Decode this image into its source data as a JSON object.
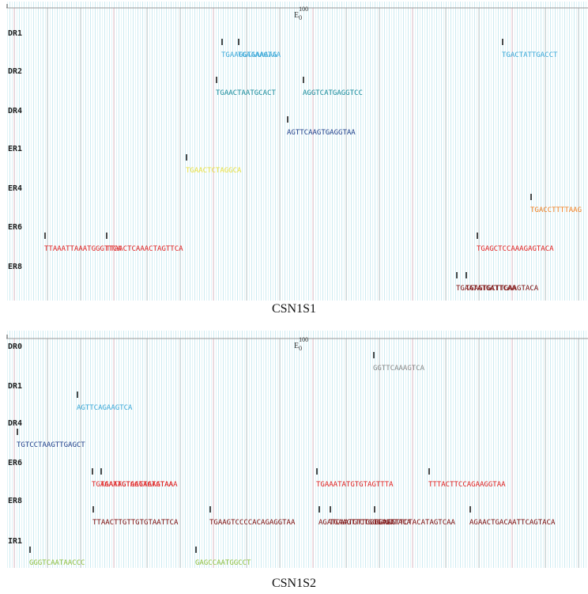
{
  "marker": {
    "base": "E",
    "sub": "0",
    "sup": "100"
  },
  "panels": [
    {
      "caption": "CSN1S1",
      "tracks": [
        {
          "name": "DR1",
          "color": "#3aa8d8",
          "sites": [
            "TGAAGGTGAAAAG",
            "TGAAAAGTAA",
            "TGACTATTGACCT"
          ]
        },
        {
          "name": "DR2",
          "color": "#168a9a",
          "sites": [
            "TGAACTAATGCACT",
            "AGGTCATGAGGTCC"
          ]
        },
        {
          "name": "DR4",
          "color": "#1f3f8a",
          "sites": [
            "AGTTCAAGTGAGGTAA"
          ]
        },
        {
          "name": "ER1",
          "color": "#e8e040",
          "sites": [
            "TGAACTCTAGGCA"
          ]
        },
        {
          "name": "ER4",
          "color": "#f07f20",
          "sites": [
            "TGACCTTTTAAG"
          ]
        },
        {
          "name": "ER6",
          "color": "#e02020",
          "sites": [
            "TTAAATTAAATGGGTTCA",
            "TTAACTCAAACTAGTTCA",
            "TGAGCTCCAAAGAGTACA"
          ]
        },
        {
          "name": "ER8",
          "color": "#7a0a0a",
          "sites": [
            "TGAATATGATTCAA",
            "TGAGTGCTTGAAGTACA"
          ]
        }
      ]
    },
    {
      "caption": "CSN1S2",
      "tracks": [
        {
          "name": "DR0",
          "color": "#888888",
          "sites": [
            "GGTTCAAAGTCA"
          ]
        },
        {
          "name": "DR1",
          "color": "#3aa8d8",
          "sites": [
            "AGTTCAGAAGTCA"
          ]
        },
        {
          "name": "DR4",
          "color": "#1f3f8a",
          "sites": [
            "TGTCCTAAGTTGAGCT"
          ]
        },
        {
          "name": "ER6",
          "color": "#e02020",
          "sites": [
            "TGAAAATGTAGTAGTATAA",
            "TGATAGTGAGTAAGTAAA",
            "TGAAATATGTGTAGTTTA",
            "TTTACTTCCAGAAGGTAA"
          ]
        },
        {
          "name": "ER8",
          "color": "#7a0a0a",
          "sites": [
            "TTAACTTGTTGTGTAATTCA",
            "TGAAGTCCCCACAGAGGTAA",
            "AGATCAATGTTGGGGAAG",
            "TGAAGTTCTGGGAGTTACA",
            "TGAGTTTCTACATAGTCAA",
            "AGAACTGACAATTCAGTACA"
          ]
        },
        {
          "name": "IR1",
          "color": "#90c040",
          "sites": [
            "GGGTCAATAACCC",
            "GAGCCAATGGCCT"
          ]
        }
      ]
    }
  ]
}
